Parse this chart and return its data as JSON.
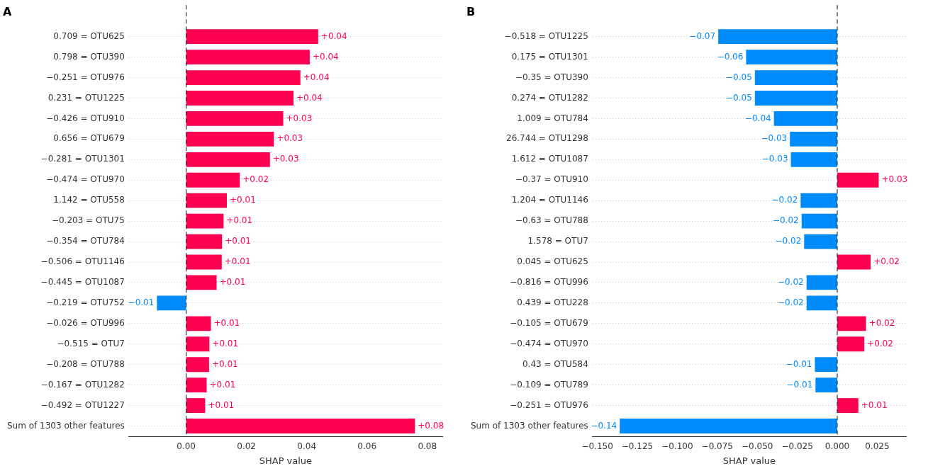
{
  "chart_data": [
    {
      "type": "bar",
      "orientation": "horizontal",
      "title": "A",
      "xlabel": "SHAP value",
      "categories": [
        "0.709 = OTU625",
        "0.798 = OTU390",
        "−0.251 = OTU976",
        "0.231 = OTU1225",
        "−0.426 = OTU910",
        "0.656 = OTU679",
        "−0.281 = OTU1301",
        "−0.474 = OTU970",
        "1.142 = OTU558",
        "−0.203 = OTU75",
        "−0.354 = OTU784",
        "−0.506 = OTU1146",
        "−0.445 = OTU1087",
        "−0.219 = OTU752",
        "−0.026 = OTU996",
        "−0.515 = OTU7",
        "−0.208 = OTU788",
        "−0.167 = OTU1282",
        "−0.492 = OTU1227",
        "Sum of 1303 other features"
      ],
      "values": [
        0.0438,
        0.041,
        0.0379,
        0.0356,
        0.0322,
        0.0291,
        0.0278,
        0.0178,
        0.0135,
        0.0124,
        0.0119,
        0.0118,
        0.0101,
        -0.0097,
        0.0082,
        0.0077,
        0.0076,
        0.0068,
        0.0063,
        0.0759
      ],
      "colors": [
        "#ff0051",
        "#ff0051",
        "#ff0051",
        "#ff0051",
        "#ff0051",
        "#ff0051",
        "#ff0051",
        "#ff0051",
        "#ff0051",
        "#ff0051",
        "#ff0051",
        "#ff0051",
        "#ff0051",
        "#008bfb",
        "#ff0051",
        "#ff0051",
        "#ff0051",
        "#ff0051",
        "#ff0051",
        "#ff0051"
      ],
      "value_labels": [
        "+0.04",
        "+0.04",
        "+0.04",
        "+0.04",
        "+0.03",
        "+0.03",
        "+0.03",
        "+0.02",
        "+0.01",
        "+0.01",
        "+0.01",
        "+0.01",
        "+0.01",
        "−0.01",
        "+0.01",
        "+0.01",
        "+0.01",
        "+0.01",
        "+0.01",
        "+0.08"
      ],
      "xlim": [
        -0.019,
        0.085
      ],
      "xticks": [
        {
          "value": 0,
          "label": "0.00"
        },
        {
          "value": 0.02,
          "label": "0.02"
        },
        {
          "value": 0.04,
          "label": "0.04"
        },
        {
          "value": 0.06,
          "label": "0.06"
        },
        {
          "value": 0.08,
          "label": "0.08"
        }
      ],
      "ref_lines": [
        {
          "axis": "x",
          "value": 0,
          "color": "#333333",
          "line_style": "dashed"
        }
      ],
      "grid": "y",
      "legend": false
    },
    {
      "type": "bar",
      "orientation": "horizontal",
      "title": "B",
      "xlabel": "SHAP value",
      "categories": [
        "−0.518 = OTU1225",
        "0.175 = OTU1301",
        "−0.35 = OTU390",
        "0.274 = OTU1282",
        "1.009 = OTU784",
        "26.744 = OTU1298",
        "1.612 = OTU1087",
        "−0.37 = OTU910",
        "1.204 = OTU1146",
        "−0.63 = OTU788",
        "1.578 = OTU7",
        "0.045 = OTU625",
        "−0.816 = OTU996",
        "0.439 = OTU228",
        "−0.105 = OTU679",
        "−0.474 = OTU970",
        "0.43 = OTU584",
        "−0.109 = OTU789",
        "−0.251 = OTU976",
        "Sum of 1303 other features"
      ],
      "values": [
        -0.0744,
        -0.057,
        -0.0515,
        -0.0515,
        -0.0396,
        -0.0296,
        -0.029,
        0.0259,
        -0.0229,
        -0.0223,
        -0.0207,
        0.0209,
        -0.0192,
        -0.0192,
        0.018,
        0.0169,
        -0.014,
        -0.0136,
        0.0132,
        -0.136
      ],
      "colors": [
        "#008bfb",
        "#008bfb",
        "#008bfb",
        "#008bfb",
        "#008bfb",
        "#008bfb",
        "#008bfb",
        "#ff0051",
        "#008bfb",
        "#008bfb",
        "#008bfb",
        "#ff0051",
        "#008bfb",
        "#008bfb",
        "#ff0051",
        "#ff0051",
        "#008bfb",
        "#008bfb",
        "#ff0051",
        "#008bfb"
      ],
      "value_labels": [
        "−0.07",
        "−0.06",
        "−0.05",
        "−0.05",
        "−0.04",
        "−0.03",
        "−0.03",
        "+0.03",
        "−0.02",
        "−0.02",
        "−0.02",
        "+0.02",
        "−0.02",
        "−0.02",
        "+0.02",
        "+0.02",
        "−0.01",
        "−0.01",
        "+0.01",
        "−0.14"
      ],
      "xlim": [
        -0.153,
        0.043
      ],
      "xticks": [
        {
          "value": -0.15,
          "label": "−0.150"
        },
        {
          "value": -0.125,
          "label": "−0.125"
        },
        {
          "value": -0.1,
          "label": "−0.100"
        },
        {
          "value": -0.075,
          "label": "−0.075"
        },
        {
          "value": -0.05,
          "label": "−0.050"
        },
        {
          "value": -0.025,
          "label": "−0.025"
        },
        {
          "value": 0,
          "label": "0.000"
        },
        {
          "value": 0.025,
          "label": "0.025"
        }
      ],
      "ref_lines": [
        {
          "axis": "x",
          "value": 0,
          "color": "#333333",
          "line_style": "dashed"
        }
      ],
      "grid": "y",
      "legend": false
    }
  ]
}
